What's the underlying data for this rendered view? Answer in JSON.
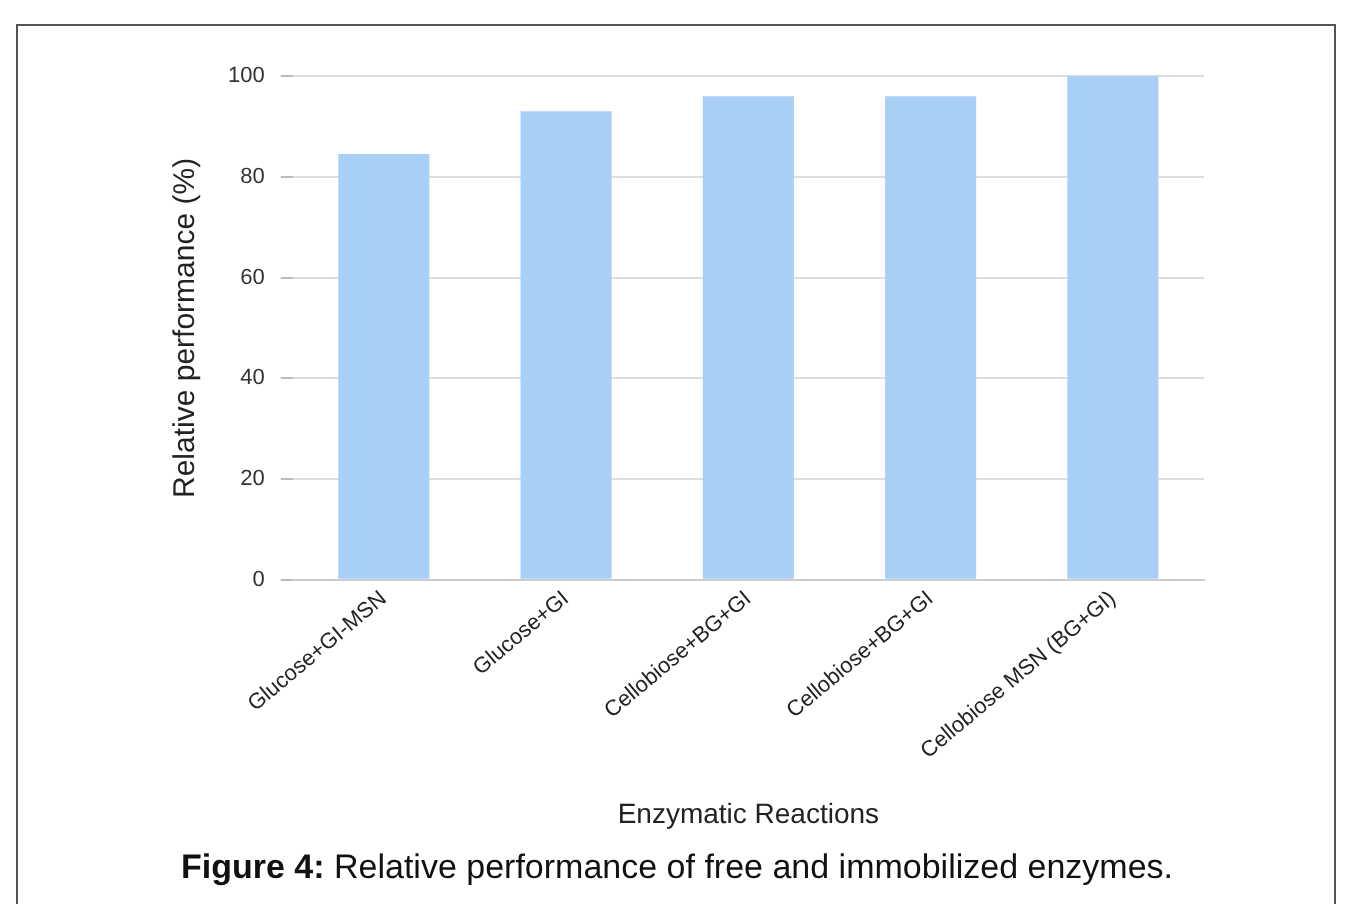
{
  "chart_data": {
    "type": "bar",
    "xlabel": "Enzymatic Reactions",
    "ylabel": "Relative performance (%)",
    "categories": [
      "Glucose+GI-MSN",
      "Glucose+GI",
      "Cellobiose+BG+GI",
      "Cellobiose+BG+GI",
      "Cellobiose MSN (BG+GI)"
    ],
    "values": [
      84.5,
      93,
      96,
      96,
      100
    ],
    "color": "#a8d0f7",
    "ylim": [
      0,
      100
    ],
    "yticks": [
      0,
      20,
      40,
      60,
      80,
      100
    ],
    "grid": "y",
    "legend": false,
    "annotations": [
      "Figure 4: Relative performance of free and immobilized enzymes."
    ]
  }
}
